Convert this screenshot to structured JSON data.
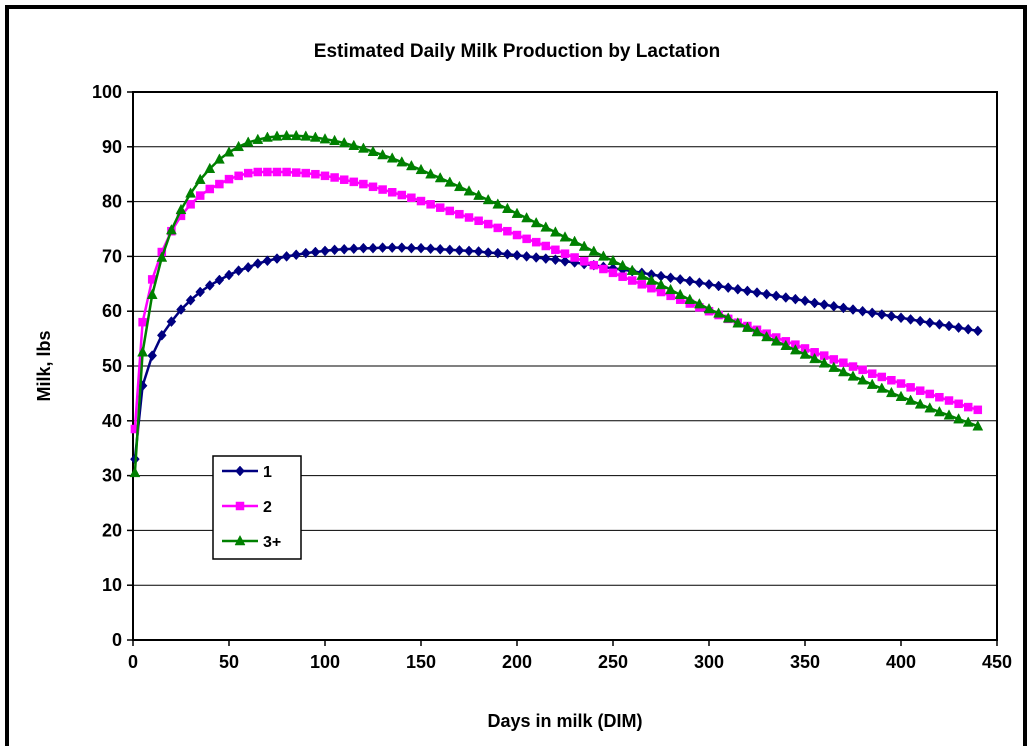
{
  "chart_data": {
    "type": "line",
    "title": "Estimated Daily Milk Production by Lactation",
    "xlabel": "Days in milk (DIM)",
    "ylabel": "Milk, lbs",
    "xlim": [
      0,
      450
    ],
    "ylim": [
      0,
      100
    ],
    "xticks": [
      0,
      50,
      100,
      150,
      200,
      250,
      300,
      350,
      400,
      450
    ],
    "yticks": [
      0,
      10,
      20,
      30,
      40,
      50,
      60,
      70,
      80,
      90,
      100
    ],
    "grid": "horizontal",
    "legend_position": "left",
    "x": [
      1,
      5,
      10,
      15,
      20,
      25,
      30,
      35,
      40,
      45,
      50,
      55,
      60,
      65,
      70,
      75,
      80,
      85,
      90,
      95,
      100,
      105,
      110,
      115,
      120,
      125,
      130,
      135,
      140,
      145,
      150,
      155,
      160,
      165,
      170,
      175,
      180,
      185,
      190,
      195,
      200,
      205,
      210,
      215,
      220,
      225,
      230,
      235,
      240,
      245,
      250,
      255,
      260,
      265,
      270,
      275,
      280,
      285,
      290,
      295,
      300,
      305,
      310,
      315,
      320,
      325,
      330,
      335,
      340,
      345,
      350,
      355,
      360,
      365,
      370,
      375,
      380,
      385,
      390,
      395,
      400,
      405,
      410,
      415,
      420,
      425,
      430,
      435,
      440
    ],
    "series": [
      {
        "name": "1",
        "color": "#000080",
        "marker": "diamond",
        "values": [
          33.0,
          46.4,
          51.9,
          55.6,
          58.1,
          60.3,
          62.0,
          63.5,
          64.7,
          65.7,
          66.6,
          67.4,
          68.0,
          68.7,
          69.2,
          69.6,
          70.0,
          70.3,
          70.6,
          70.8,
          71.0,
          71.2,
          71.3,
          71.4,
          71.5,
          71.5,
          71.6,
          71.6,
          71.6,
          71.5,
          71.5,
          71.4,
          71.3,
          71.2,
          71.1,
          71.0,
          70.9,
          70.7,
          70.6,
          70.4,
          70.2,
          70.0,
          69.8,
          69.6,
          69.4,
          69.1,
          68.9,
          68.6,
          68.4,
          68.1,
          67.8,
          67.6,
          67.3,
          67.0,
          66.7,
          66.4,
          66.1,
          65.8,
          65.5,
          65.2,
          64.9,
          64.6,
          64.3,
          64.0,
          63.7,
          63.4,
          63.1,
          62.8,
          62.5,
          62.2,
          61.9,
          61.5,
          61.2,
          60.9,
          60.6,
          60.3,
          60.0,
          59.7,
          59.4,
          59.1,
          58.8,
          58.5,
          58.2,
          57.9,
          57.6,
          57.3,
          57.0,
          56.7,
          56.4
        ]
      },
      {
        "name": "2",
        "color": "#ff00ff",
        "marker": "square",
        "values": [
          38.5,
          58.0,
          65.8,
          70.8,
          74.6,
          77.4,
          79.5,
          81.1,
          82.3,
          83.2,
          84.1,
          84.7,
          85.2,
          85.4,
          85.4,
          85.4,
          85.4,
          85.3,
          85.2,
          85.0,
          84.7,
          84.4,
          84.0,
          83.6,
          83.2,
          82.7,
          82.2,
          81.7,
          81.2,
          80.7,
          80.1,
          79.5,
          78.9,
          78.3,
          77.7,
          77.1,
          76.5,
          75.9,
          75.2,
          74.6,
          73.9,
          73.2,
          72.6,
          71.9,
          71.2,
          70.5,
          69.8,
          69.1,
          68.4,
          67.7,
          67.0,
          66.3,
          65.6,
          64.9,
          64.2,
          63.5,
          62.8,
          62.1,
          61.4,
          60.7,
          60.0,
          59.3,
          58.6,
          57.9,
          57.3,
          56.6,
          55.9,
          55.2,
          54.5,
          53.9,
          53.2,
          52.5,
          51.9,
          51.2,
          50.6,
          49.9,
          49.3,
          48.6,
          48.0,
          47.4,
          46.8,
          46.1,
          45.5,
          44.9,
          44.3,
          43.7,
          43.1,
          42.5,
          42.0
        ]
      },
      {
        "name": "3+",
        "color": "#008000",
        "marker": "triangle",
        "values": [
          30.5,
          52.5,
          63.0,
          69.8,
          74.8,
          78.5,
          81.5,
          84.0,
          86.0,
          87.7,
          89.0,
          90.0,
          90.8,
          91.3,
          91.7,
          91.9,
          92.0,
          92.0,
          91.9,
          91.7,
          91.4,
          91.1,
          90.7,
          90.2,
          89.7,
          89.1,
          88.5,
          87.9,
          87.2,
          86.5,
          85.8,
          85.0,
          84.3,
          83.5,
          82.7,
          81.9,
          81.1,
          80.3,
          79.5,
          78.7,
          77.8,
          77.0,
          76.1,
          75.3,
          74.4,
          73.5,
          72.7,
          71.8,
          70.9,
          70.0,
          69.2,
          68.3,
          67.4,
          66.5,
          65.6,
          64.8,
          63.9,
          63.0,
          62.1,
          61.3,
          60.4,
          59.6,
          58.7,
          57.8,
          57.0,
          56.2,
          55.3,
          54.5,
          53.7,
          52.9,
          52.1,
          51.3,
          50.5,
          49.7,
          48.9,
          48.1,
          47.4,
          46.6,
          45.9,
          45.1,
          44.4,
          43.7,
          43.0,
          42.3,
          41.6,
          41.0,
          40.3,
          39.7,
          39.0
        ]
      }
    ]
  }
}
